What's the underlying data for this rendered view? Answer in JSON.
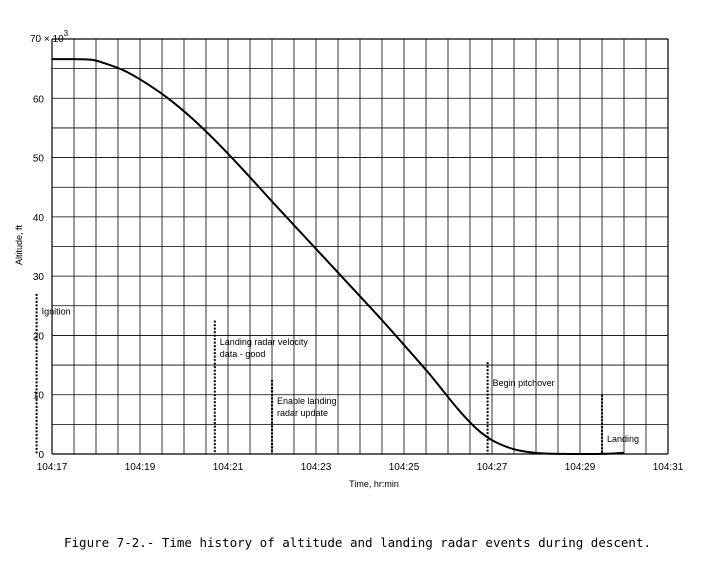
{
  "caption": "Figure 7-2.- Time history of altitude and landing radar events during descent.",
  "chart_data": {
    "type": "line",
    "xlabel": "Time, hr:min",
    "ylabel": "Altitude, ft",
    "y_multiplier_label": "70 × 10",
    "y_multiplier_exponent": "3",
    "xlim": [
      0,
      14
    ],
    "ylim": [
      0,
      70
    ],
    "x_ticks": [
      {
        "value": 0,
        "label": "104:17"
      },
      {
        "value": 2,
        "label": "104:19"
      },
      {
        "value": 4,
        "label": "104:21"
      },
      {
        "value": 6,
        "label": "104:23"
      },
      {
        "value": 8,
        "label": "104:25"
      },
      {
        "value": 10,
        "label": "104:27"
      },
      {
        "value": 12,
        "label": "104:29"
      },
      {
        "value": 14,
        "label": "104:31"
      }
    ],
    "y_ticks": [
      {
        "value": 0,
        "label": "0"
      },
      {
        "value": 10,
        "label": "10"
      },
      {
        "value": 20,
        "label": "20"
      },
      {
        "value": 30,
        "label": "30"
      },
      {
        "value": 40,
        "label": "40"
      },
      {
        "value": 50,
        "label": "50"
      },
      {
        "value": 60,
        "label": "60"
      }
    ],
    "series": [
      {
        "x": [
          0,
          0.5,
          0.9,
          1.2,
          1.6,
          2.0,
          2.6,
          3.2,
          3.8,
          4.4,
          5.0,
          5.6,
          6.2,
          6.8,
          7.4,
          8.0,
          8.6,
          9.2,
          9.6,
          9.9,
          10.2,
          10.5,
          10.8,
          11.1,
          11.4,
          11.7,
          12.0,
          12.4,
          12.8,
          13.0
        ],
        "y": [
          66.6,
          66.6,
          66.5,
          65.9,
          64.8,
          63.2,
          60.2,
          56.5,
          52.2,
          47.5,
          42.6,
          37.8,
          33.0,
          28.2,
          23.4,
          18.4,
          13.3,
          7.8,
          4.6,
          2.8,
          1.6,
          0.8,
          0.35,
          0.12,
          0.04,
          0.01,
          0.0,
          0.0,
          0.1,
          0.2
        ]
      }
    ],
    "events": [
      {
        "x": -0.35,
        "top": 27,
        "label_lines": [
          "Ignition"
        ],
        "label_y": 23.5
      },
      {
        "x": 3.7,
        "top": 22.5,
        "label_lines": [
          "Landing radar velocity",
          "data - good"
        ],
        "label_y": 18.4
      },
      {
        "x": 5.0,
        "top": 12.5,
        "label_lines": [
          "Enable landing",
          "radar update"
        ],
        "label_y": 8.4
      },
      {
        "x": 9.9,
        "top": 15.5,
        "label_lines": [
          "Begin pitchover"
        ],
        "label_y": 11.5
      },
      {
        "x": 12.5,
        "top": 10,
        "label_lines": [
          "Landing"
        ],
        "label_y": 2.0
      }
    ],
    "grid": true
  }
}
